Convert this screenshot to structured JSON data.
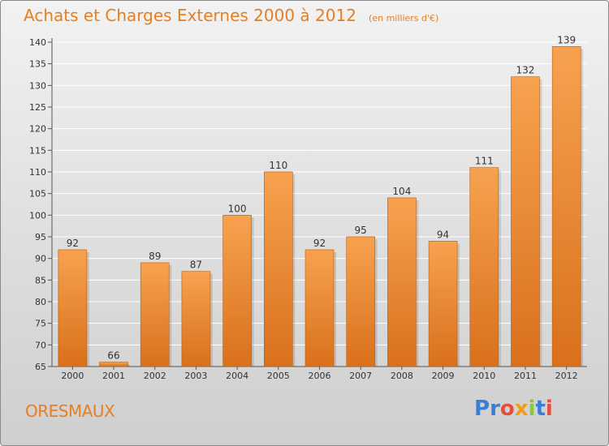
{
  "title": "Achats et Charges Externes 2000 à 2012",
  "subtitle": "(en milliers d'€)",
  "commune": "ORESMAUX",
  "logo": {
    "letters": [
      {
        "char": "P",
        "color": "#3a7fd5"
      },
      {
        "char": "r",
        "color": "#3a7fd5"
      },
      {
        "char": "o",
        "color": "#e74c3c"
      },
      {
        "char": "x",
        "color": "#f39c12"
      },
      {
        "char": "i",
        "color": "#8cc63f"
      },
      {
        "char": "t",
        "color": "#3a7fd5"
      },
      {
        "char": "i",
        "color": "#e74c3c"
      }
    ]
  },
  "chart_data": {
    "type": "bar",
    "categories": [
      "2000",
      "2001",
      "2002",
      "2003",
      "2004",
      "2005",
      "2006",
      "2007",
      "2008",
      "2009",
      "2010",
      "2011",
      "2012"
    ],
    "values": [
      92,
      66,
      89,
      87,
      100,
      110,
      92,
      95,
      104,
      94,
      111,
      132,
      139
    ],
    "ylim": [
      65,
      140
    ],
    "yticks": [
      65,
      70,
      75,
      80,
      85,
      90,
      95,
      100,
      105,
      110,
      115,
      120,
      125,
      130,
      135,
      140
    ],
    "grid": true,
    "bar_color_top": "#f7a24f",
    "bar_color_bottom": "#d9701c"
  }
}
